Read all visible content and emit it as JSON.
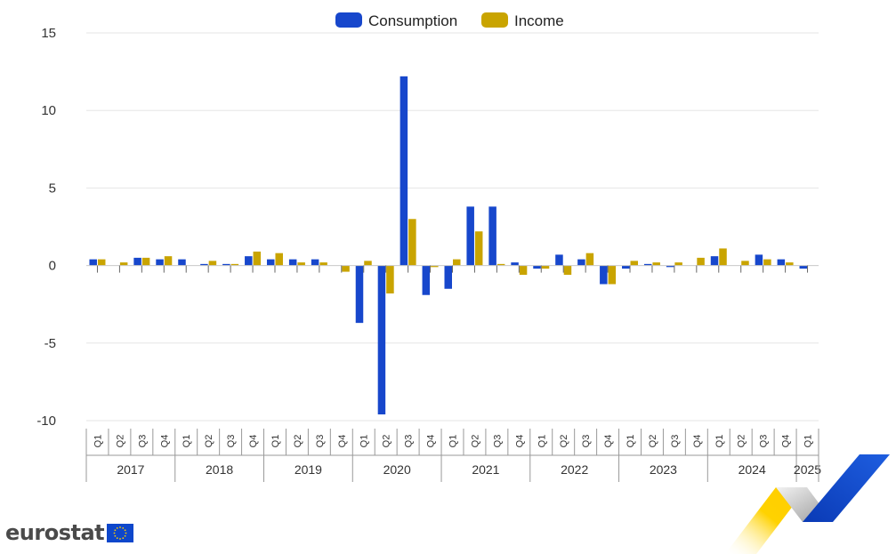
{
  "colors": {
    "consumption": "#1747cc",
    "income": "#c9a400",
    "brand_blue": "#0e47cb",
    "brand_yellow": "#ffcc00"
  },
  "brand": {
    "name": "eurostat",
    "flag_icon": "eu-flag-icon"
  },
  "chart_data": {
    "type": "bar",
    "title": "",
    "xlabel": "",
    "ylabel": "",
    "ylim": [
      -10,
      15
    ],
    "yticks": [
      "15",
      "10",
      "5",
      "0",
      "-5",
      "-10"
    ],
    "legend_position": "top-center",
    "grid": "horizontal",
    "quarters": [
      "Q1",
      "Q2",
      "Q3",
      "Q4",
      "Q1",
      "Q2",
      "Q3",
      "Q4",
      "Q1",
      "Q2",
      "Q3",
      "Q4",
      "Q1",
      "Q2",
      "Q3",
      "Q4",
      "Q1",
      "Q2",
      "Q3",
      "Q4",
      "Q1",
      "Q2",
      "Q3",
      "Q4",
      "Q1",
      "Q2",
      "Q3",
      "Q4",
      "Q1",
      "Q2",
      "Q3",
      "Q4",
      "Q1"
    ],
    "years": [
      "2017",
      "2018",
      "2019",
      "2020",
      "2021",
      "2022",
      "2023",
      "2024",
      "2025"
    ],
    "series": [
      {
        "name": "Consumption",
        "values": [
          0.4,
          0.0,
          0.5,
          0.4,
          0.4,
          0.1,
          0.1,
          0.6,
          0.4,
          0.4,
          0.4,
          0.0,
          -3.7,
          -9.6,
          12.2,
          -1.9,
          -1.5,
          3.8,
          3.8,
          0.2,
          -0.2,
          0.7,
          0.4,
          -1.2,
          -0.2,
          0.1,
          -0.1,
          0.0,
          0.6,
          0.0,
          0.7,
          0.4,
          -0.2
        ]
      },
      {
        "name": "Income",
        "values": [
          0.4,
          0.2,
          0.5,
          0.6,
          0.0,
          0.3,
          0.1,
          0.9,
          0.8,
          0.2,
          0.2,
          -0.4,
          0.3,
          -1.8,
          3.0,
          -0.1,
          0.4,
          2.2,
          0.1,
          -0.6,
          -0.2,
          -0.6,
          0.8,
          -1.2,
          0.3,
          0.2,
          0.2,
          0.5,
          1.1,
          0.3,
          0.4,
          0.2,
          0.0
        ]
      }
    ]
  }
}
